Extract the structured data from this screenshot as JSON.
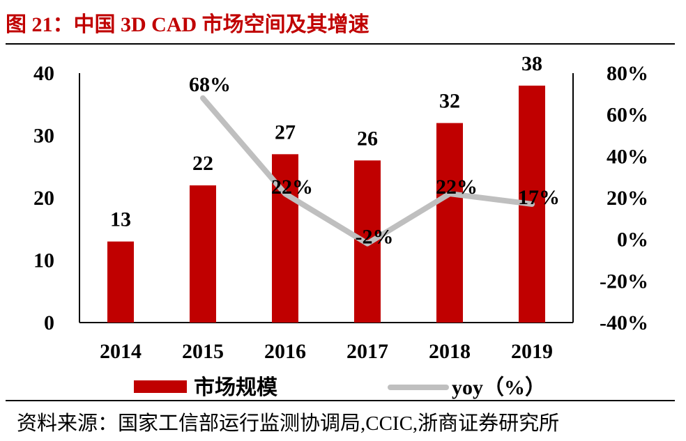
{
  "title": "图 21：中国 3D CAD 市场空间及其增速",
  "source": "资料来源：国家工信部运行监测协调局,CCIC,浙商证券研究所",
  "colors": {
    "bar": "#c00000",
    "line": "#bfbfbf",
    "title": "#c00000"
  },
  "chart_data": {
    "type": "bar+line",
    "title": "中国 3D CAD 市场空间及其增速",
    "categories": [
      "2014",
      "2015",
      "2016",
      "2017",
      "2018",
      "2019"
    ],
    "series": [
      {
        "name": "市场规模",
        "type": "bar",
        "axis": "left",
        "values": [
          13,
          22,
          27,
          26,
          32,
          38
        ],
        "labels": [
          "13",
          "22",
          "27",
          "26",
          "32",
          "38"
        ]
      },
      {
        "name": "yoy（%）",
        "type": "line",
        "axis": "right",
        "values": [
          null,
          68,
          22,
          -2,
          22,
          17
        ],
        "labels": [
          "",
          "68%",
          "22%",
          "-2%",
          "22%",
          "17%"
        ]
      }
    ],
    "left_axis": {
      "range": [
        0,
        40
      ],
      "ticks": [
        0,
        10,
        20,
        30,
        40
      ],
      "tick_labels": [
        "0",
        "10",
        "20",
        "30",
        "40"
      ]
    },
    "right_axis": {
      "range": [
        -40,
        80
      ],
      "ticks": [
        -40,
        -20,
        0,
        20,
        40,
        60,
        80
      ],
      "tick_labels": [
        "-40%",
        "-20%",
        "0%",
        "20%",
        "40%",
        "60%",
        "80%"
      ]
    },
    "legend": {
      "position": "bottom",
      "items": [
        "市场规模",
        "yoy（%）"
      ]
    },
    "grid": false
  }
}
